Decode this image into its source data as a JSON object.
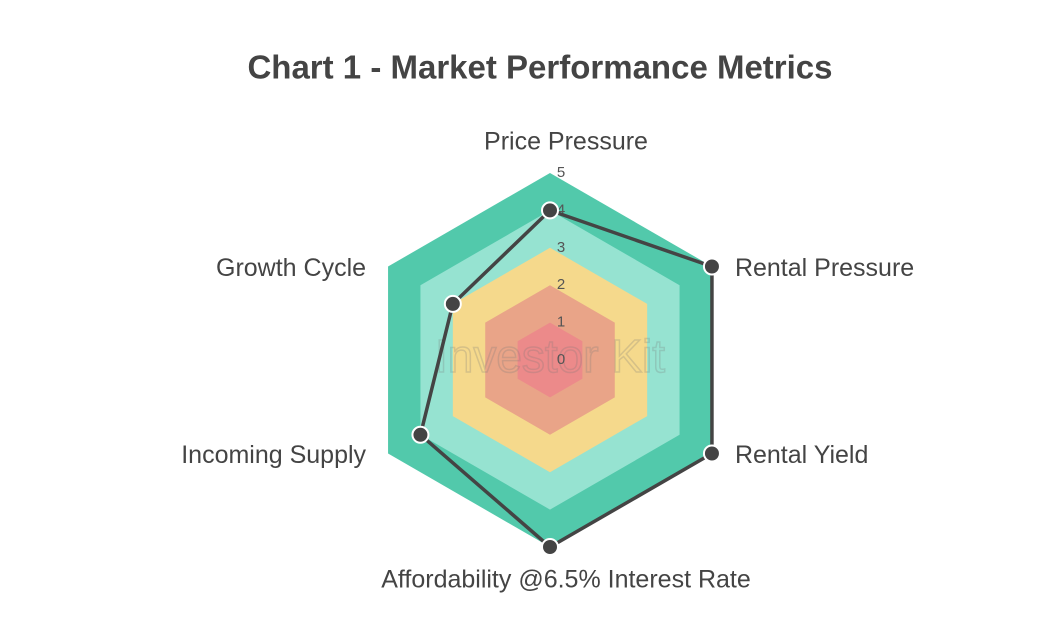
{
  "chart_data": {
    "type": "radar",
    "title": "Chart 1 - Market Performance Metrics",
    "watermark": "Investor Kit",
    "categories": [
      "Price Pressure",
      "Rental Pressure",
      "Rental Yield",
      "Affordability @6.5% Interest Rate",
      "Incoming Supply",
      "Growth Cycle"
    ],
    "values": [
      4,
      5,
      5,
      5,
      4,
      3
    ],
    "color": "#444444",
    "rlim": [
      0,
      5
    ],
    "rticks": [
      0,
      1,
      2,
      3,
      4,
      5
    ],
    "band_colors": [
      "#ec8a8a",
      "#e9a488",
      "#f5d98c",
      "#96e3d1",
      "#52c9ab"
    ]
  }
}
